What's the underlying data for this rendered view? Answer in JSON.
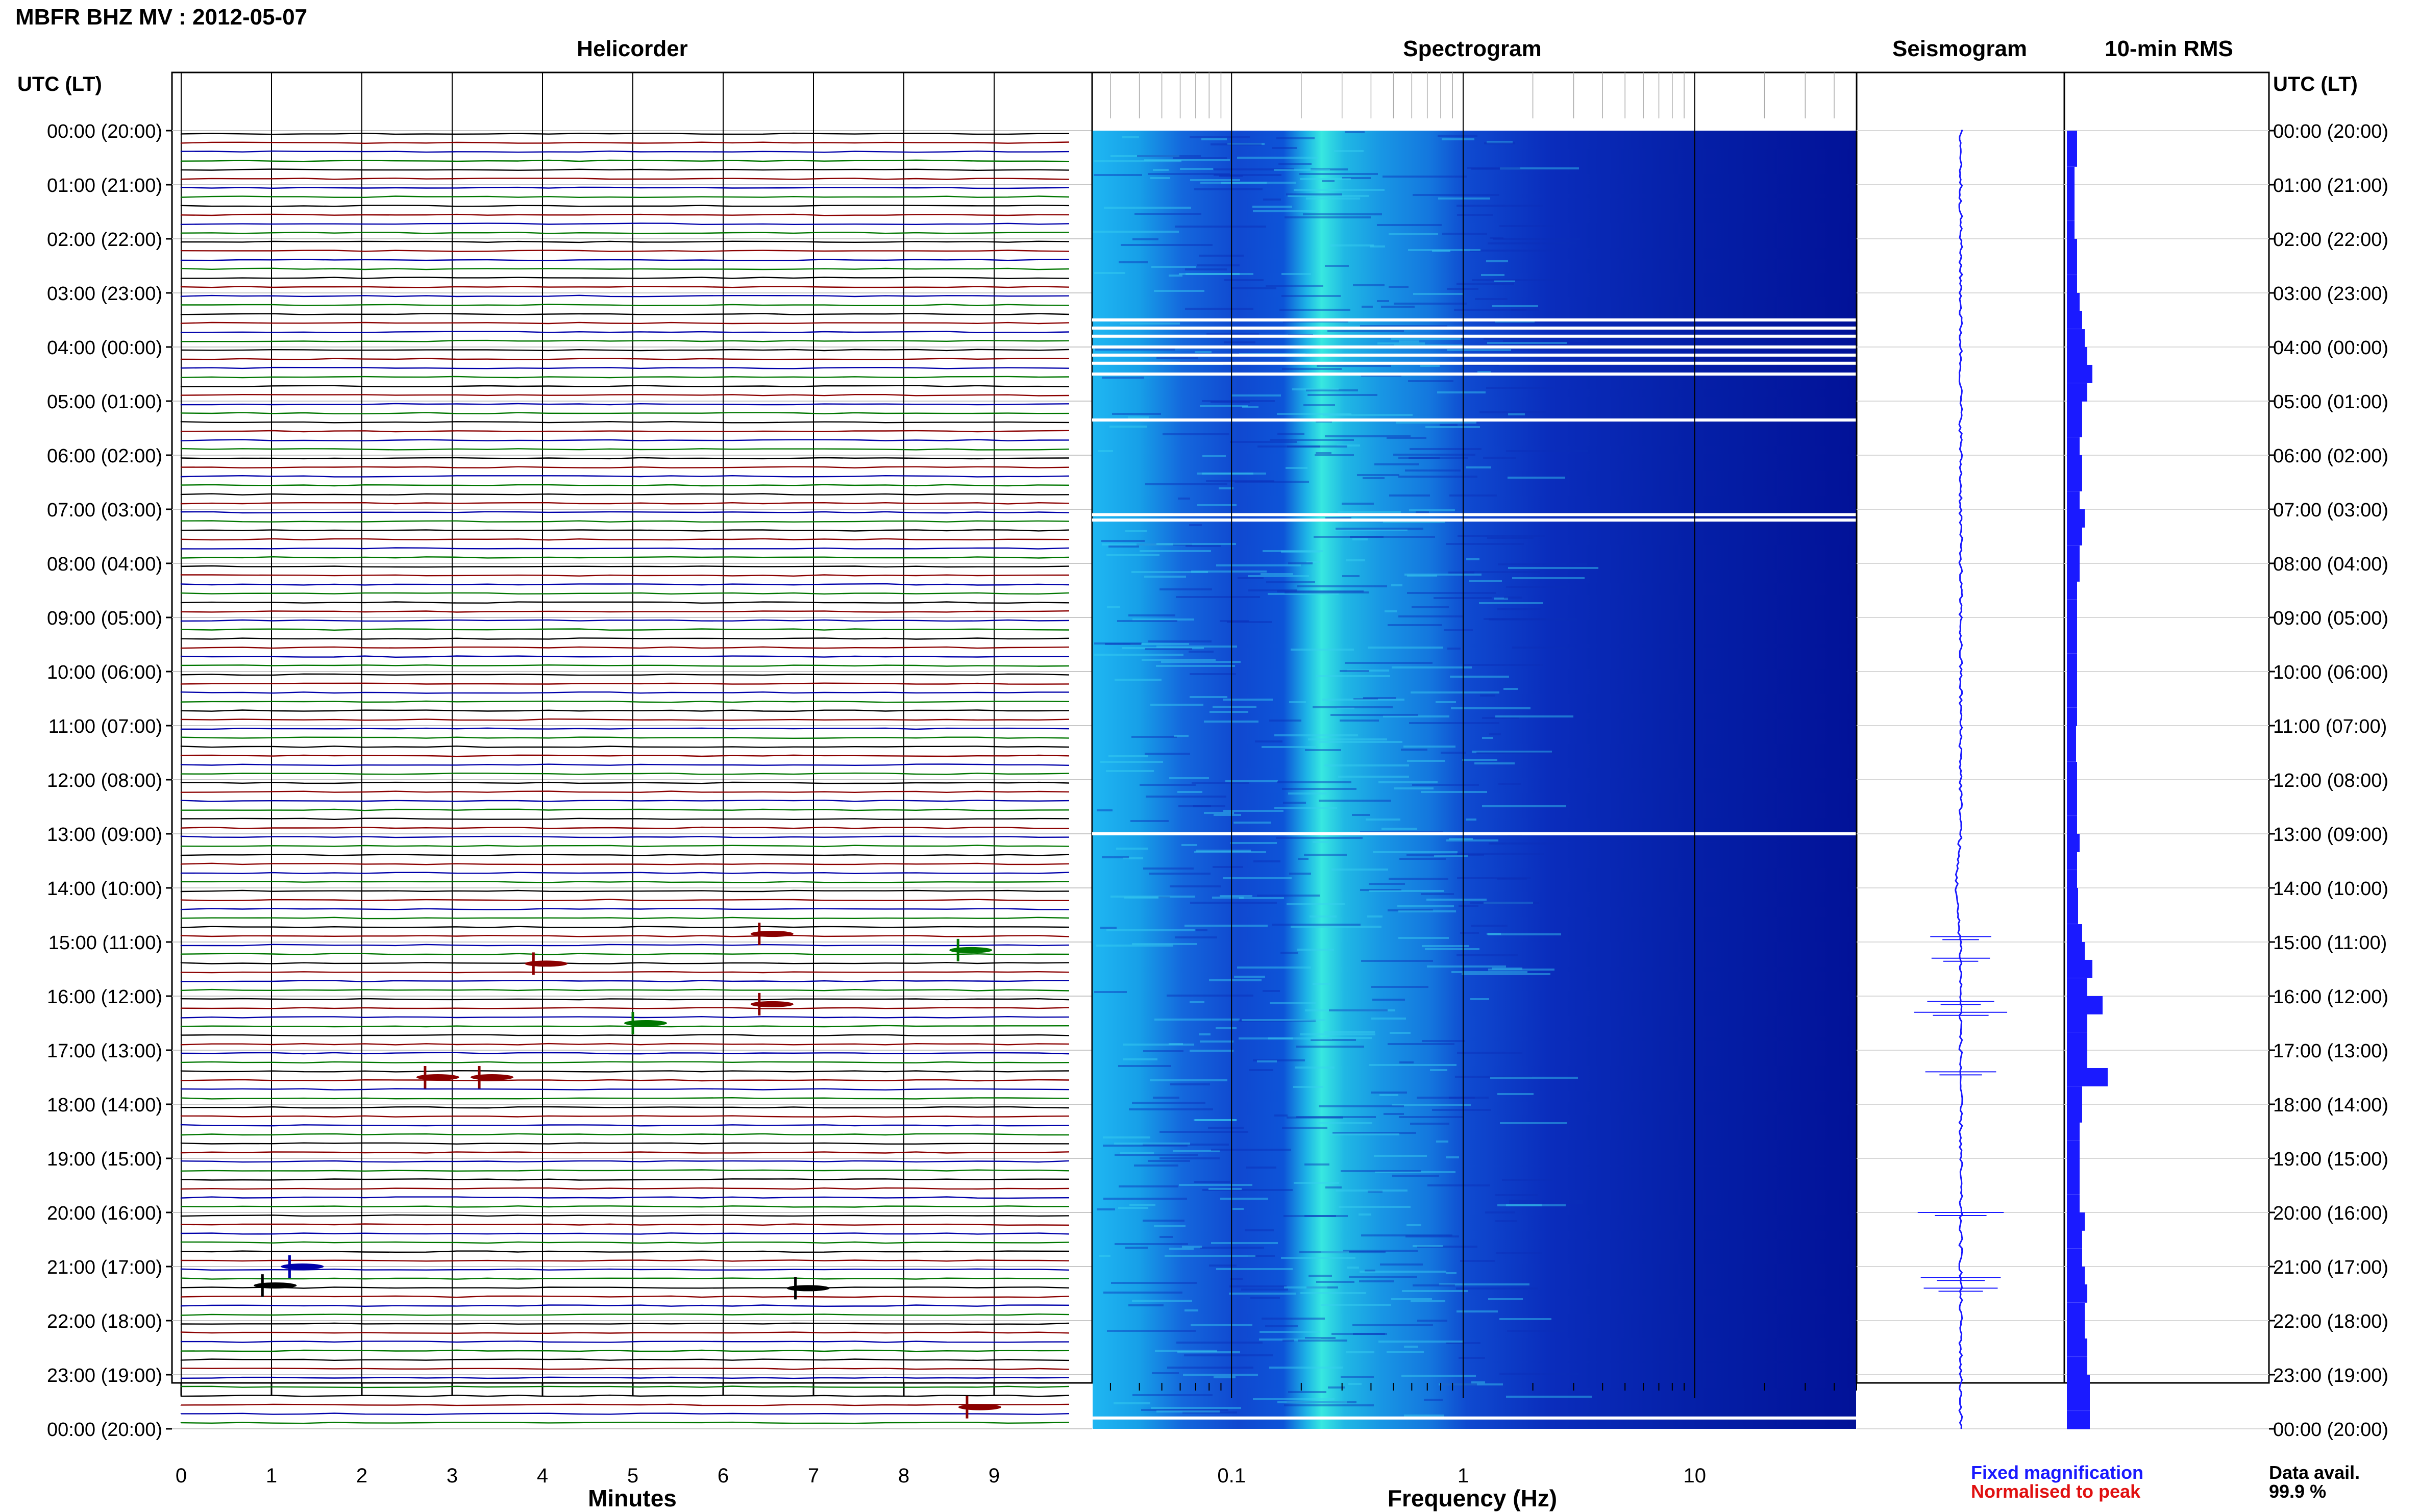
{
  "header": {
    "station_title": "MBFR BHZ MV : 2012-05-07",
    "utc_lt_left": "UTC (LT)",
    "utc_lt_right": "UTC (LT)"
  },
  "panels": {
    "helicorder_title": "Helicorder",
    "spectrogram_title": "Spectrogram",
    "seismogram_title": "Seismogram",
    "rms_title": "10-min RMS"
  },
  "time_labels": [
    "00:00 (20:00)",
    "01:00 (21:00)",
    "02:00 (22:00)",
    "03:00 (23:00)",
    "04:00 (00:00)",
    "05:00 (01:00)",
    "06:00 (02:00)",
    "07:00 (03:00)",
    "08:00 (04:00)",
    "09:00 (05:00)",
    "10:00 (06:00)",
    "11:00 (07:00)",
    "12:00 (08:00)",
    "13:00 (09:00)",
    "14:00 (10:00)",
    "15:00 (11:00)",
    "16:00 (12:00)",
    "17:00 (13:00)",
    "18:00 (14:00)",
    "19:00 (15:00)",
    "20:00 (16:00)",
    "21:00 (17:00)",
    "22:00 (18:00)",
    "23:00 (19:00)",
    "00:00 (20:00)"
  ],
  "footer": {
    "minutes_label": "Minutes",
    "frequency_label": "Frequency (Hz)",
    "fixed_magnification": "Fixed magnification",
    "normalised_to_peak": "Normalised to peak",
    "data_avail_label": "Data avail.",
    "data_avail_value": "99.9 %"
  },
  "colors": {
    "fixed_magnification": "#1a1aff",
    "normalised_to_peak": "#e01010",
    "trace_black": "#000000",
    "trace_red": "#8b0000",
    "trace_blue": "#0000aa",
    "trace_green": "#007700",
    "spectrogram_low": "#00109a",
    "spectrogram_high": "#00ffee"
  },
  "chart_data": [
    {
      "type": "line",
      "name": "helicorder",
      "title": "Helicorder",
      "xlabel": "Minutes",
      "xlim": [
        0,
        10
      ],
      "x_ticks": [
        "0",
        "1",
        "2",
        "3",
        "4",
        "5",
        "6",
        "7",
        "8",
        "9"
      ],
      "y_ticks": "time_labels",
      "events": [
        {
          "hour": 14.85,
          "minute": 6.4,
          "color": "red"
        },
        {
          "hour": 15.15,
          "minute": 8.6,
          "color": "green"
        },
        {
          "hour": 15.4,
          "minute": 3.9,
          "color": "red"
        },
        {
          "hour": 16.15,
          "minute": 6.4,
          "color": "red"
        },
        {
          "hour": 16.5,
          "minute": 5.0,
          "color": "green"
        },
        {
          "hour": 17.5,
          "minute": 2.7,
          "color": "red"
        },
        {
          "hour": 17.5,
          "minute": 3.3,
          "color": "red"
        },
        {
          "hour": 21.0,
          "minute": 1.2,
          "color": "blue"
        },
        {
          "hour": 21.35,
          "minute": 0.9,
          "color": "black"
        },
        {
          "hour": 21.4,
          "minute": 6.8,
          "color": "black"
        },
        {
          "hour": 23.6,
          "minute": 8.7,
          "color": "red"
        }
      ]
    },
    {
      "type": "heatmap",
      "name": "spectrogram",
      "title": "Spectrogram",
      "xlabel": "Frequency (Hz)",
      "x_scale": "log",
      "xlim": [
        0.025,
        50
      ],
      "x_ticks": [
        "0.1",
        "1",
        "10"
      ],
      "peak_frequency_hz": 0.25,
      "gap_hours": [
        3.5,
        3.65,
        3.8,
        4.0,
        4.15,
        4.3,
        4.5,
        5.35,
        7.1,
        7.2,
        13.0,
        23.8
      ]
    },
    {
      "type": "line",
      "name": "seismogram",
      "title": "Seismogram",
      "large_amplitude_hours": [
        14.9,
        15.3,
        16.1,
        16.3,
        17.4,
        20.0,
        21.2,
        21.4
      ]
    },
    {
      "type": "bar",
      "name": "rms",
      "title": "10-min RMS",
      "orientation": "horizontal",
      "x": [
        0,
        0.33,
        0.67,
        1,
        1.33,
        1.67,
        2,
        2.33,
        2.67,
        3,
        3.33,
        3.67,
        4,
        4.33,
        4.67,
        5,
        5.33,
        5.67,
        6,
        6.33,
        6.67,
        7,
        7.33,
        7.67,
        8,
        8.33,
        8.67,
        9,
        9.33,
        9.67,
        10,
        10.33,
        10.67,
        11,
        11.33,
        11.67,
        12,
        12.33,
        12.67,
        13,
        13.33,
        13.67,
        14,
        14.33,
        14.67,
        15,
        15.33,
        15.67,
        16,
        16.33,
        16.67,
        17,
        17.33,
        17.67,
        18,
        18.33,
        18.67,
        19,
        19.33,
        19.67,
        20,
        20.33,
        20.67,
        21,
        21.33,
        21.67,
        22,
        22.33,
        22.67,
        23,
        23.33,
        23.67
      ],
      "values": [
        2,
        2,
        1.5,
        1.5,
        1.5,
        1.5,
        2,
        2,
        2,
        2.5,
        3,
        3.5,
        4,
        5,
        4,
        3,
        3,
        2.5,
        3,
        3,
        2.5,
        3.5,
        3,
        2.5,
        2.5,
        2,
        2,
        2,
        2,
        2,
        2,
        2,
        2,
        1.8,
        1.8,
        2,
        2,
        2,
        2,
        2.5,
        2,
        2,
        2.2,
        2.2,
        3,
        3.5,
        5,
        4,
        7,
        4,
        4,
        4,
        8,
        3,
        3,
        2.5,
        2.5,
        2.5,
        2.5,
        2.5,
        3.5,
        3,
        3,
        3.5,
        4,
        3.5,
        3.5,
        4,
        4,
        4.5,
        4.5,
        4.5
      ]
    }
  ]
}
